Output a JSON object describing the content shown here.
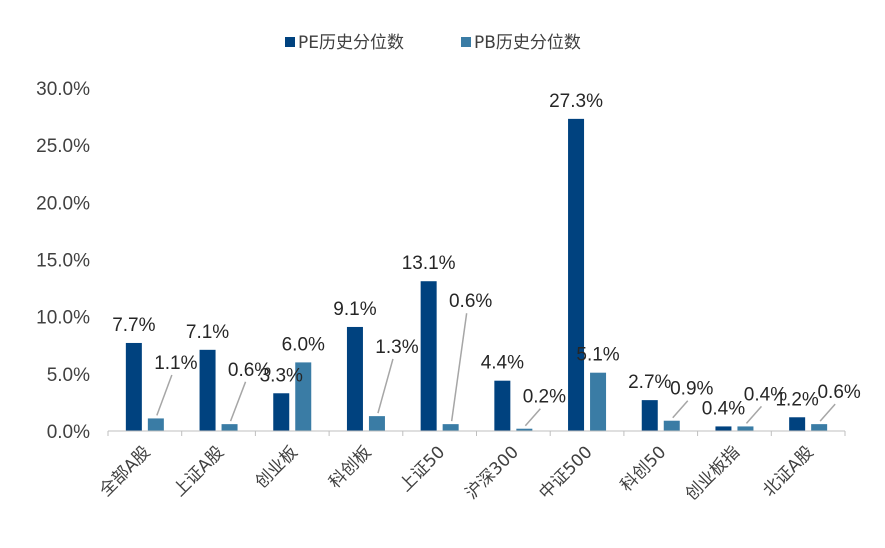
{
  "chart_data": {
    "type": "bar",
    "categories": [
      "全部A股",
      "上证A股",
      "创业板",
      "科创板",
      "上证50",
      "沪深300",
      "中证500",
      "科创50",
      "创业板指",
      "北证A股"
    ],
    "series": [
      {
        "name": "PE历史分位数",
        "color": "#00427F",
        "values": [
          7.7,
          7.1,
          3.3,
          9.1,
          13.1,
          4.4,
          27.3,
          2.7,
          0.4,
          1.2
        ],
        "labels": [
          "7.7%",
          "7.1%",
          "3.3%",
          "9.1%",
          "13.1%",
          "4.4%",
          "27.3%",
          "2.7%",
          "0.4%",
          "1.2%"
        ]
      },
      {
        "name": "PB历史分位数",
        "color": "#3A7CA5",
        "values": [
          1.1,
          0.6,
          6.0,
          1.3,
          0.6,
          0.2,
          5.1,
          0.9,
          0.4,
          0.6
        ],
        "labels": [
          "1.1%",
          "0.6%",
          "6.0%",
          "1.3%",
          "0.6%",
          "0.2%",
          "5.1%",
          "0.9%",
          "0.4%",
          "0.6%"
        ]
      }
    ],
    "y_ticks": [
      "0.0%",
      "5.0%",
      "10.0%",
      "15.0%",
      "20.0%",
      "25.0%",
      "30.0%"
    ],
    "ylim": [
      0,
      30
    ],
    "legend_position": "top-center",
    "grid": false,
    "title": "",
    "xlabel": "",
    "ylabel": ""
  }
}
